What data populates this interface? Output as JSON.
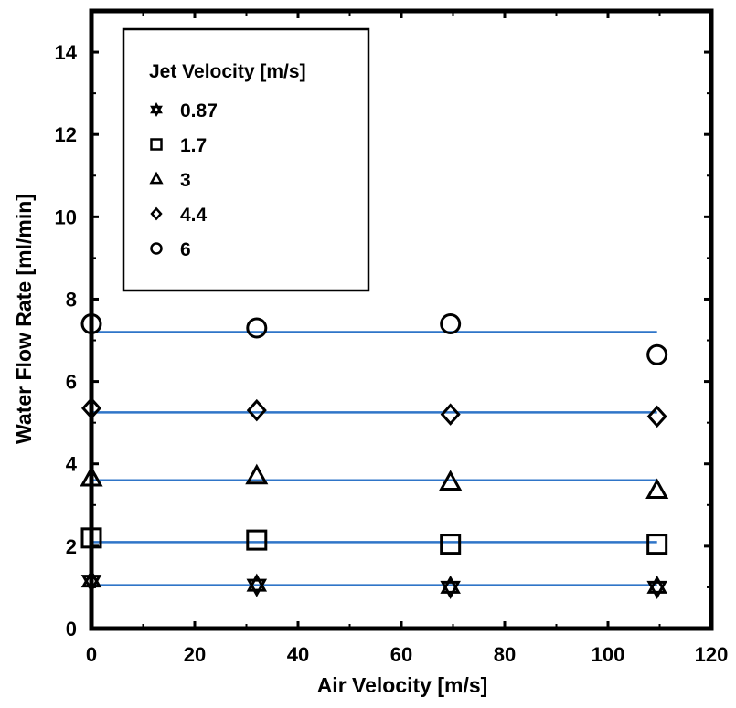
{
  "chart_data": {
    "type": "scatter",
    "title": "",
    "xlabel": "Air Velocity [m/s]",
    "ylabel": "Water Flow Rate [ml/min]",
    "xlim": [
      0,
      120
    ],
    "ylim": [
      0,
      15
    ],
    "xticks": [
      0,
      20,
      40,
      60,
      80,
      100,
      120
    ],
    "yticks": [
      0,
      2,
      4,
      6,
      8,
      10,
      12,
      14
    ],
    "grid": false,
    "legend": {
      "title": "Jet Velocity [m/s]",
      "placement": "top-left"
    },
    "trendline_color": "#2f75c8",
    "series": [
      {
        "name": "0.87",
        "marker": "star",
        "x": [
          0,
          32,
          69.5,
          109.5
        ],
        "y": [
          1.15,
          1.05,
          1.0,
          1.0
        ],
        "fit": 1.05
      },
      {
        "name": "1.7",
        "marker": "square",
        "x": [
          0,
          32,
          69.5,
          109.5
        ],
        "y": [
          2.2,
          2.15,
          2.05,
          2.05
        ],
        "fit": 2.1
      },
      {
        "name": "3",
        "marker": "triangle",
        "x": [
          0,
          32,
          69.5,
          109.5
        ],
        "y": [
          3.65,
          3.7,
          3.55,
          3.35
        ],
        "fit": 3.6
      },
      {
        "name": "4.4",
        "marker": "diamond",
        "x": [
          0,
          32,
          69.5,
          109.5
        ],
        "y": [
          5.35,
          5.3,
          5.2,
          5.15
        ],
        "fit": 5.25
      },
      {
        "name": "6",
        "marker": "circle",
        "x": [
          0,
          32,
          69.5,
          109.5
        ],
        "y": [
          7.4,
          7.3,
          7.4,
          6.65
        ],
        "fit": 7.2
      }
    ]
  }
}
